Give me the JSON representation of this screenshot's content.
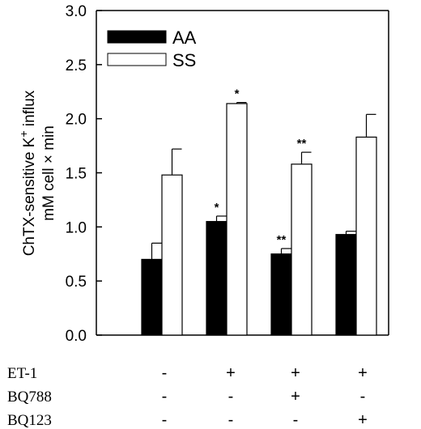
{
  "chart_data": {
    "type": "bar",
    "ylabel_line1": "ChTX-sensitive K",
    "ylabel_sup": "+",
    "ylabel_line1_tail": " influx",
    "ylabel_line2": "mM cell × min",
    "ylim": [
      0,
      3.0
    ],
    "yticks": [
      "0.0",
      "0.5",
      "1.0",
      "1.5",
      "2.0",
      "2.5",
      "3.0"
    ],
    "ytick_values": [
      0,
      0.5,
      1.0,
      1.5,
      2.0,
      2.5,
      3.0
    ],
    "legend": {
      "placement": "top-left"
    },
    "series": [
      {
        "name": "AA",
        "color": "#000000",
        "values": [
          0.7,
          1.05,
          0.75,
          0.93
        ],
        "errors": [
          0.15,
          0.05,
          0.05,
          0.03
        ],
        "marks": [
          "",
          "*",
          "**",
          ""
        ]
      },
      {
        "name": "SS",
        "color": "#ffffff",
        "values": [
          1.48,
          2.14,
          1.58,
          1.83
        ],
        "errors": [
          0.24,
          0.01,
          0.11,
          0.21
        ],
        "marks": [
          "",
          "*",
          "**",
          ""
        ]
      }
    ],
    "conditions": [
      {
        "label": "ET-1",
        "symbols": [
          "-",
          "+",
          "+",
          "+"
        ]
      },
      {
        "label": "BQ788",
        "symbols": [
          "-",
          "-",
          "+",
          "-"
        ]
      },
      {
        "label": "BQ123",
        "symbols": [
          "-",
          "-",
          "-",
          "+"
        ]
      }
    ]
  }
}
